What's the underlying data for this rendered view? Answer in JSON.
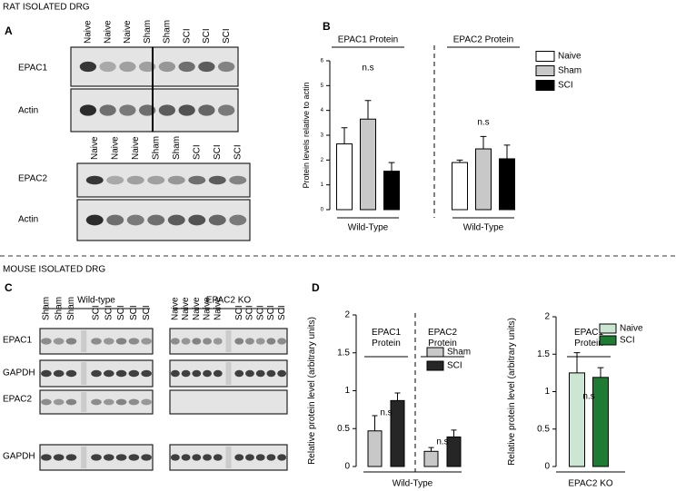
{
  "header": {
    "rat_title": "RAT ISOLATED DRG",
    "mouse_title": "MOUSE ISOLATED DRG"
  },
  "panels": {
    "a": "A",
    "b": "B",
    "c": "C",
    "d": "D"
  },
  "blots_a": [
    {
      "lanes": [
        "Naive",
        "Naive",
        "Naive",
        "Sham",
        "Sham",
        "SCI",
        "SCI",
        "SCI"
      ],
      "rows": [
        "EPAC1",
        "Actin"
      ]
    },
    {
      "lanes": [
        "Naive",
        "Naive",
        "Naive",
        "Sham",
        "Sham",
        "SCI",
        "SCI",
        "SCI"
      ],
      "rows": [
        "EPAC2",
        "Actin"
      ]
    }
  ],
  "blots_c": {
    "groups": [
      {
        "name": "Wild-type",
        "lanes": [
          "Sham",
          "Sham",
          "Sham",
          "SCI",
          "SCI",
          "SCI",
          "SCI",
          "SCI"
        ]
      },
      {
        "name": "EPAC2 KO",
        "lanes": [
          "Naive",
          "Naive",
          "Naive",
          "Naive",
          "Naive",
          "SCI",
          "SCI",
          "SCI",
          "SCI",
          "SCI"
        ]
      }
    ],
    "rows": [
      "EPAC1",
      "GAPDH",
      "EPAC2",
      "GAPDH"
    ]
  },
  "chart_data": [
    {
      "type": "bar",
      "categories": [
        "EPAC1 Protein",
        "EPAC2 Protein"
      ],
      "group_labels": [
        "Wild-Type",
        "Wild-Type"
      ],
      "annotations": [
        "n.s",
        "n.s"
      ],
      "y_label": "Protein levels relative to actin",
      "series": [
        {
          "name": "Naive",
          "color": "#ffffff",
          "values": [
            2.65,
            1.9
          ],
          "errors": [
            0.65,
            0.1
          ]
        },
        {
          "name": "Sham",
          "color": "#c8c8c8",
          "values": [
            3.65,
            2.45
          ],
          "errors": [
            0.75,
            0.5
          ]
        },
        {
          "name": "SCI",
          "color": "#000000",
          "values": [
            1.55,
            2.05
          ],
          "errors": [
            0.35,
            0.55
          ]
        }
      ],
      "ylim": [
        0,
        6
      ],
      "yticks": [
        0,
        1,
        2,
        3,
        4,
        5,
        6
      ],
      "legend": "upper right"
    },
    {
      "type": "bar",
      "categories": [
        "EPAC1 Protein",
        "EPAC2 Protein"
      ],
      "x_label": "Wild-Type",
      "annotations": [
        "n.s",
        "n.s"
      ],
      "y_label": "Relative protein level (arbitrary units)",
      "series": [
        {
          "name": "Sham",
          "color": "#c8c8c8",
          "values": [
            0.47,
            0.2
          ],
          "errors": [
            0.2,
            0.05
          ]
        },
        {
          "name": "SCI",
          "color": "#262626",
          "values": [
            0.87,
            0.39
          ],
          "errors": [
            0.1,
            0.09
          ]
        }
      ],
      "ylim": [
        0,
        2
      ],
      "yticks": [
        0,
        0.5,
        1,
        1.5,
        2
      ],
      "legend": "upper right"
    },
    {
      "type": "bar",
      "categories": [
        "EPAC1 Protein"
      ],
      "x_label": "EPAC2 KO",
      "annotations": [
        "n.s"
      ],
      "y_label": "Relative protein level (arbitrary units)",
      "series": [
        {
          "name": "Naive",
          "color": "#cce6d4",
          "values": [
            1.25
          ],
          "errors": [
            0.27
          ]
        },
        {
          "name": "SCI",
          "color": "#1e7b34",
          "values": [
            1.19
          ],
          "errors": [
            0.13
          ]
        }
      ],
      "ylim": [
        0,
        2
      ],
      "yticks": [
        0,
        0.5,
        1,
        1.5,
        2
      ],
      "legend": "upper right"
    }
  ]
}
